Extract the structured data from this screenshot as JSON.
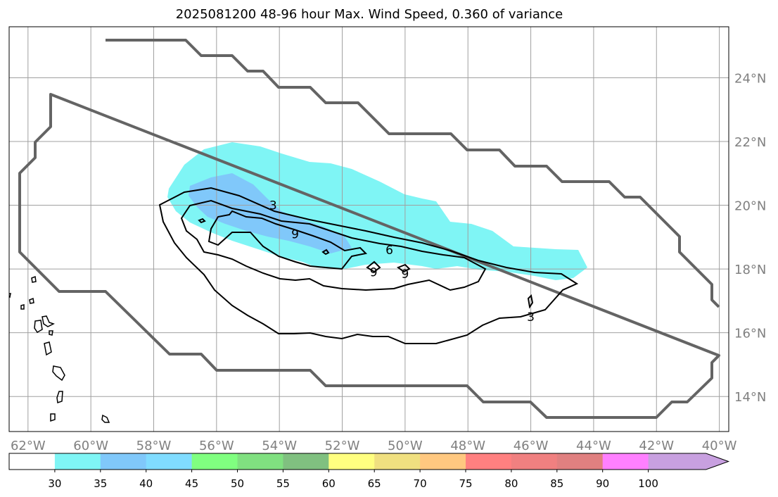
{
  "title": "2025081200 48-96 hour Max. Wind Speed, 0.360 of variance",
  "map": {
    "lon_range": [
      -62.6,
      -39.7
    ],
    "lat_range": [
      12.9,
      25.6
    ],
    "lon_ticks": [
      {
        "value": -62,
        "label": "62°W"
      },
      {
        "value": -60,
        "label": "60°W"
      },
      {
        "value": -58,
        "label": "58°W"
      },
      {
        "value": -56,
        "label": "56°W"
      },
      {
        "value": -54,
        "label": "54°W"
      },
      {
        "value": -52,
        "label": "52°W"
      },
      {
        "value": -50,
        "label": "50°W"
      },
      {
        "value": -48,
        "label": "48°W"
      },
      {
        "value": -46,
        "label": "46°W"
      },
      {
        "value": -44,
        "label": "44°W"
      },
      {
        "value": -42,
        "label": "42°W"
      },
      {
        "value": -40,
        "label": "40°W"
      }
    ],
    "lat_ticks": [
      {
        "value": 14,
        "label": "14°N"
      },
      {
        "value": 16,
        "label": "16°N"
      },
      {
        "value": 18,
        "label": "18°N"
      },
      {
        "value": 20,
        "label": "20°N"
      },
      {
        "value": 22,
        "label": "22°N"
      },
      {
        "value": 24,
        "label": "24°N"
      }
    ],
    "grid": true,
    "contour_labels": [
      {
        "text": "3",
        "lon": -54.2,
        "lat": 20.0
      },
      {
        "text": "9",
        "lon": -53.5,
        "lat": 19.1
      },
      {
        "text": "6",
        "lon": -50.5,
        "lat": 18.6
      },
      {
        "text": "9",
        "lon": -51.0,
        "lat": 17.9
      },
      {
        "text": "9",
        "lon": -50.0,
        "lat": 17.85
      },
      {
        "text": "3",
        "lon": -46.0,
        "lat": 16.5
      }
    ],
    "colors": {
      "outline": "#646464",
      "grid": "#a0a0a0",
      "contour": "#000000",
      "fill_30_35": "#7ff5f5",
      "fill_35_40": "#80c8fa"
    }
  },
  "colorbar": {
    "ticks": [
      "30",
      "35",
      "40",
      "45",
      "50",
      "55",
      "60",
      "65",
      "70",
      "75",
      "80",
      "85",
      "90",
      "100"
    ],
    "colors": [
      "#ffffff",
      "#7ff5f5",
      "#80c8fa",
      "#80dcff",
      "#80ff80",
      "#80e080",
      "#80c080",
      "#ffff80",
      "#f0e080",
      "#ffc880",
      "#ff8080",
      "#f08080",
      "#e08080",
      "#ff80ff",
      "#c8a0e0"
    ]
  }
}
